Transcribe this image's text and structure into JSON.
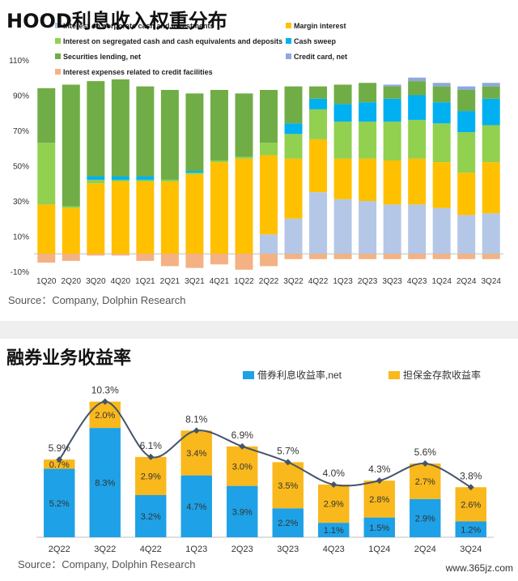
{
  "chart_data": [
    {
      "type": "bar",
      "stacked": true,
      "title": "HOOD利息收入权重分布",
      "categories": [
        "1Q20",
        "2Q20",
        "3Q20",
        "4Q20",
        "1Q21",
        "2Q21",
        "3Q21",
        "4Q21",
        "1Q22",
        "2Q22",
        "3Q22",
        "4Q22",
        "1Q23",
        "2Q23",
        "3Q23",
        "4Q23",
        "1Q24",
        "2Q24",
        "3Q24"
      ],
      "series": [
        {
          "name": "Interest on corporate cash and investments",
          "color": "#b4c7e7",
          "values": [
            0,
            0,
            0,
            0,
            0,
            0,
            0,
            0,
            0,
            11,
            20,
            35,
            31,
            30,
            28,
            28,
            26,
            22,
            23
          ]
        },
        {
          "name": "Margin interest",
          "color": "#ffc000",
          "values": [
            28,
            26,
            40,
            41,
            41,
            41,
            45,
            52,
            54,
            45,
            34,
            30,
            23,
            24,
            25,
            26,
            26,
            24,
            29
          ]
        },
        {
          "name": "Interest on segregated cash and cash equivalents and deposits",
          "color": "#92d050",
          "values": [
            35,
            1,
            2,
            1,
            1,
            1,
            1,
            1,
            1,
            7,
            14,
            17,
            21,
            21,
            22,
            22,
            22,
            23,
            21
          ]
        },
        {
          "name": "Cash sweep",
          "color": "#00b0f0",
          "values": [
            0,
            0,
            2,
            2,
            2,
            0,
            1,
            0,
            0,
            0,
            6,
            6,
            10,
            11,
            13,
            14,
            12,
            12,
            15
          ]
        },
        {
          "name": "Securities lending, net",
          "color": "#70ad47",
          "values": [
            31,
            69,
            54,
            55,
            51,
            51,
            44,
            40,
            36,
            30,
            21,
            7,
            11,
            11,
            7,
            8,
            9,
            12,
            7
          ]
        },
        {
          "name": "Credit card, net",
          "color": "#8ea9db",
          "values": [
            0,
            0,
            0,
            0,
            0,
            0,
            0,
            0,
            0,
            0,
            0,
            0,
            0,
            0,
            1,
            2,
            2,
            2,
            2
          ]
        },
        {
          "name": "Interest expenses related to credit facilities",
          "color": "#f4b183",
          "values": [
            -5,
            -4,
            -1,
            -1,
            -4,
            -7,
            -8,
            -6,
            -9,
            -7,
            -3,
            -3,
            -3,
            -3,
            -3,
            -3,
            -3,
            -3,
            -3
          ]
        }
      ],
      "ylim": [
        -10,
        110
      ],
      "yticks": [
        "-10%",
        "10%",
        "30%",
        "50%",
        "70%",
        "90%",
        "110%"
      ],
      "ytick_values": [
        -10,
        10,
        30,
        50,
        70,
        90,
        110
      ],
      "source": "Source：Company, Dolphin Research"
    },
    {
      "type": "bar",
      "stacked": true,
      "title": "融券业务收益率",
      "categories": [
        "2Q22",
        "3Q22",
        "4Q22",
        "1Q23",
        "2Q23",
        "3Q23",
        "4Q23",
        "1Q24",
        "2Q24",
        "3Q24"
      ],
      "series": [
        {
          "name": "借券利息收益率,net",
          "color": "#1ea1e6",
          "values": [
            5.2,
            8.3,
            3.2,
            4.7,
            3.9,
            2.2,
            1.1,
            1.5,
            2.9,
            1.2
          ],
          "labels": [
            "5.2%",
            "8.3%",
            "3.2%",
            "4.7%",
            "3.9%",
            "2.2%",
            "1.1%",
            "1.5%",
            "2.9%",
            "1.2%"
          ]
        },
        {
          "name": "担保金存款收益率",
          "color": "#f9b81c",
          "values": [
            0.7,
            2.0,
            2.9,
            3.4,
            3.0,
            3.5,
            2.9,
            2.8,
            2.7,
            2.6
          ],
          "labels": [
            "0.7%",
            "2.0%",
            "2.9%",
            "3.4%",
            "3.0%",
            "3.5%",
            "2.9%",
            "2.8%",
            "2.7%",
            "2.6%"
          ]
        }
      ],
      "totals": [
        5.9,
        10.3,
        6.1,
        8.1,
        6.9,
        5.7,
        4.0,
        4.3,
        5.6,
        3.8
      ],
      "total_labels": [
        "5.9%",
        "10.3%",
        "6.1%",
        "8.1%",
        "6.9%",
        "5.7%",
        "4.0%",
        "4.3%",
        "5.6%",
        "3.8%"
      ],
      "line_color": "#44546a",
      "ylim": [
        0,
        12
      ],
      "source": "Source：Company, Dolphin Research"
    }
  ],
  "watermark": "www.365jz.com"
}
